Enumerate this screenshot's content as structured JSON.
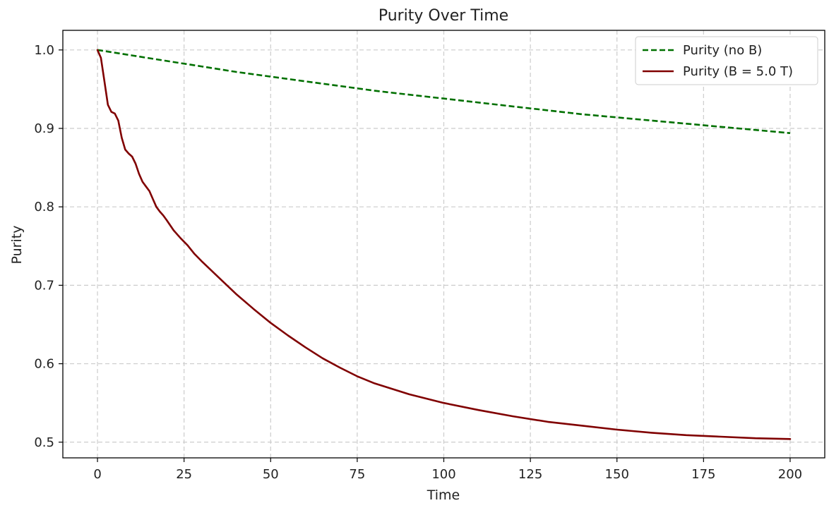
{
  "chart_data": {
    "type": "line",
    "title": "Purity Over Time",
    "xlabel": "Time",
    "ylabel": "Purity",
    "xlim": [
      -10,
      210
    ],
    "ylim": [
      0.48,
      1.025
    ],
    "xticks": [
      0,
      25,
      50,
      75,
      100,
      125,
      150,
      175,
      200
    ],
    "yticks": [
      0.5,
      0.6,
      0.7,
      0.8,
      0.9,
      1.0
    ],
    "xtick_labels": [
      "0",
      "25",
      "50",
      "75",
      "100",
      "125",
      "150",
      "175",
      "200"
    ],
    "ytick_labels": [
      "0.5",
      "0.6",
      "0.7",
      "0.8",
      "0.9",
      "1.0"
    ],
    "grid": true,
    "legend_position": "top-right",
    "series": [
      {
        "name": "Purity (no B)",
        "color": "#007000",
        "style": "dashed",
        "x": [
          0,
          10,
          20,
          30,
          40,
          50,
          60,
          70,
          80,
          90,
          100,
          110,
          120,
          130,
          140,
          150,
          160,
          170,
          180,
          190,
          200
        ],
        "y": [
          1.0,
          0.993,
          0.986,
          0.979,
          0.972,
          0.966,
          0.96,
          0.954,
          0.948,
          0.943,
          0.938,
          0.933,
          0.928,
          0.923,
          0.918,
          0.914,
          0.91,
          0.906,
          0.902,
          0.898,
          0.894
        ]
      },
      {
        "name": "Purity (B = 5.0 T)",
        "color": "#800000",
        "style": "solid",
        "x": [
          0,
          1,
          2,
          3,
          4,
          5,
          6,
          7,
          8,
          9,
          10,
          11,
          12,
          13,
          14,
          15,
          16,
          17,
          18,
          19,
          20,
          22,
          24,
          26,
          28,
          30,
          35,
          40,
          45,
          50,
          55,
          60,
          65,
          70,
          75,
          80,
          90,
          100,
          110,
          120,
          130,
          140,
          150,
          160,
          170,
          180,
          190,
          200
        ],
        "y": [
          1.0,
          0.99,
          0.96,
          0.93,
          0.921,
          0.919,
          0.91,
          0.888,
          0.873,
          0.868,
          0.864,
          0.855,
          0.842,
          0.832,
          0.826,
          0.82,
          0.81,
          0.8,
          0.794,
          0.789,
          0.783,
          0.77,
          0.76,
          0.751,
          0.74,
          0.731,
          0.71,
          0.689,
          0.67,
          0.652,
          0.636,
          0.621,
          0.607,
          0.595,
          0.584,
          0.575,
          0.561,
          0.55,
          0.541,
          0.533,
          0.526,
          0.521,
          0.516,
          0.512,
          0.509,
          0.507,
          0.505,
          0.504
        ]
      }
    ]
  }
}
